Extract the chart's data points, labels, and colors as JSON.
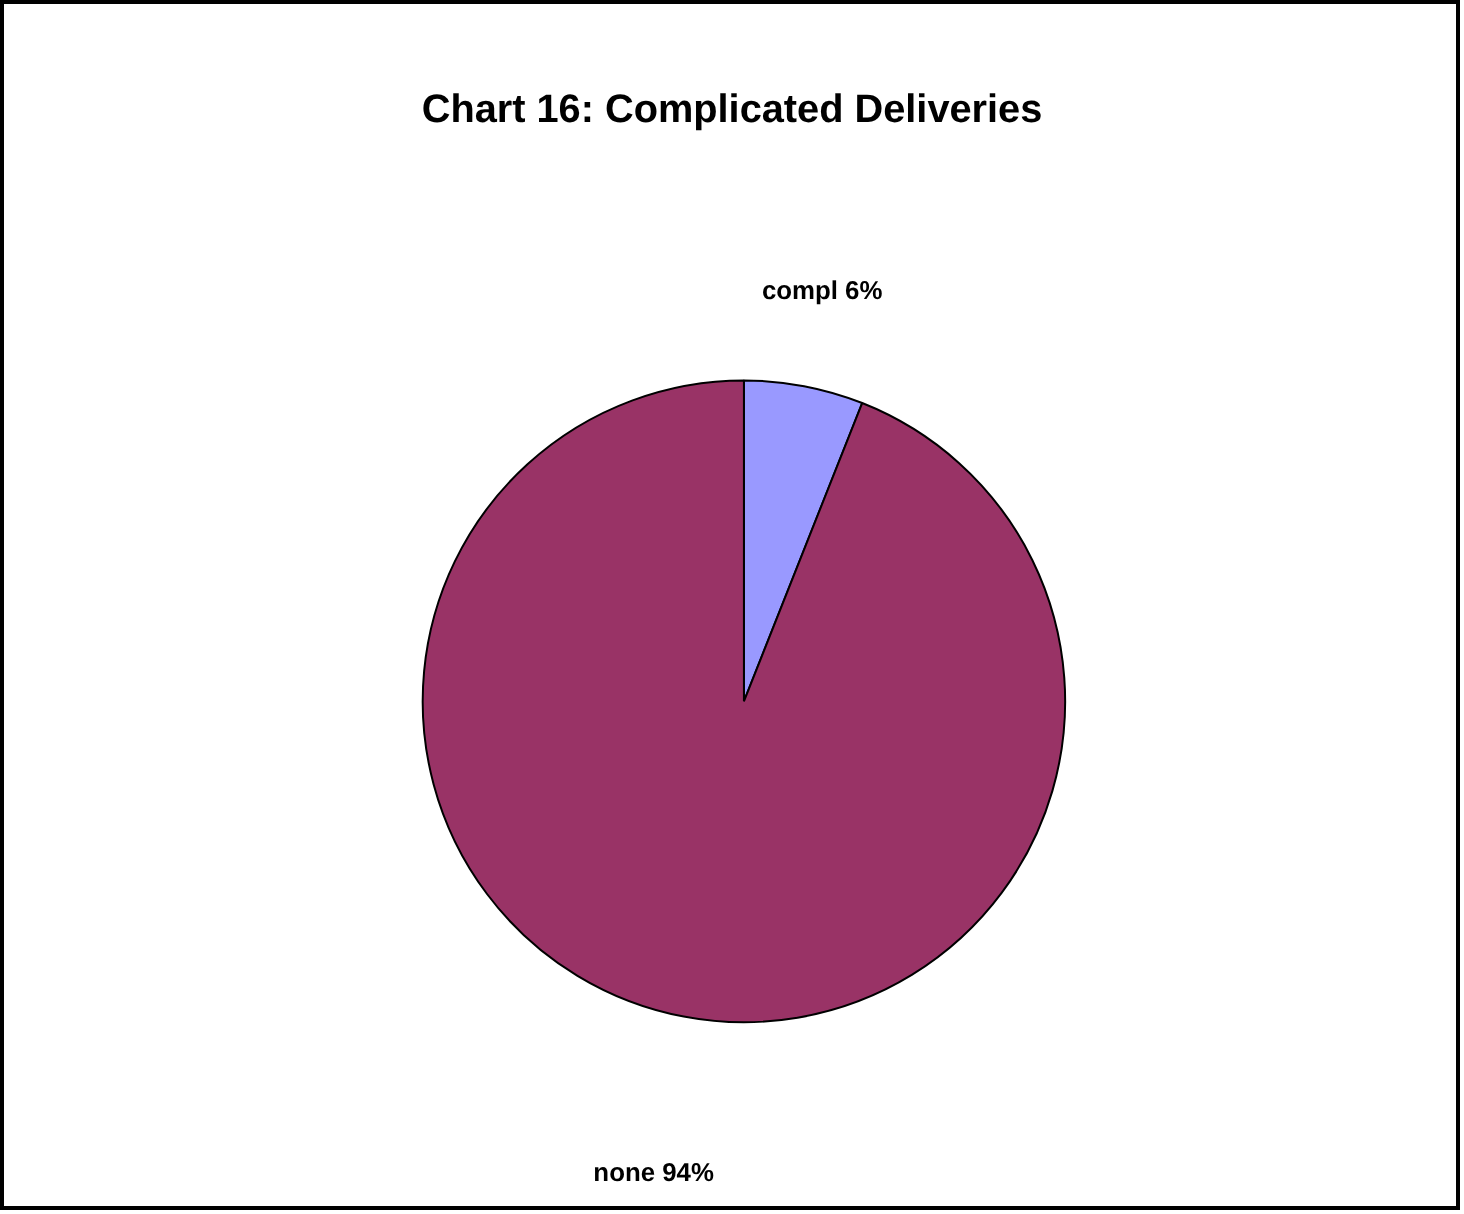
{
  "chart_data": {
    "type": "pie",
    "title": "Chart 16: Complicated Deliveries",
    "categories": [
      "compl",
      "none"
    ],
    "values": [
      6,
      94
    ],
    "colors": [
      "#9999ff",
      "#993366"
    ],
    "value_labels": [
      "6%",
      "94%"
    ],
    "legend": false
  }
}
